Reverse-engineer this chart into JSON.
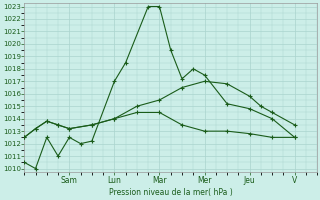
{
  "background_color": "#cceee8",
  "grid_color": "#aad4ce",
  "line_color": "#1a5c1a",
  "ylabel": "Pression niveau de la mer( hPa )",
  "ylim": [
    1010,
    1023
  ],
  "yticks": [
    1010,
    1011,
    1012,
    1013,
    1014,
    1015,
    1016,
    1017,
    1018,
    1019,
    1020,
    1021,
    1022,
    1023
  ],
  "day_labels": [
    "Sam",
    "Lun",
    "Mar",
    "Mer",
    "Jeu",
    "V"
  ],
  "day_positions": [
    2,
    4,
    6,
    8,
    10,
    12
  ],
  "xlim": [
    0,
    13
  ],
  "series": [
    {
      "x": [
        0,
        0.5,
        1.0,
        1.5,
        2.0,
        2.5,
        3.0,
        4.0,
        4.5,
        5.5,
        6.0,
        6.5,
        7.0,
        7.5,
        8.0,
        9.0,
        10.0,
        11.0,
        12.0
      ],
      "y": [
        1010.5,
        1010.0,
        1012.5,
        1011.0,
        1012.5,
        1012.0,
        1012.2,
        1017.0,
        1018.5,
        1023.0,
        1023.0,
        1019.5,
        1017.2,
        1018.0,
        1017.5,
        1015.2,
        1014.8,
        1014.0,
        1012.5
      ]
    },
    {
      "x": [
        0,
        0.5,
        1.0,
        1.5,
        2.0,
        3.0,
        4.0,
        5.0,
        6.0,
        7.0,
        8.0,
        9.0,
        10.0,
        10.5,
        11.0,
        12.0
      ],
      "y": [
        1012.5,
        1013.2,
        1013.8,
        1013.5,
        1013.2,
        1013.5,
        1014.0,
        1015.0,
        1015.5,
        1016.5,
        1017.0,
        1016.8,
        1015.8,
        1015.0,
        1014.5,
        1013.5
      ]
    },
    {
      "x": [
        0,
        0.5,
        1.0,
        1.5,
        2.0,
        3.0,
        4.0,
        5.0,
        6.0,
        7.0,
        8.0,
        9.0,
        10.0,
        11.0,
        12.0
      ],
      "y": [
        1012.5,
        1013.2,
        1013.8,
        1013.5,
        1013.2,
        1013.5,
        1014.0,
        1014.5,
        1014.5,
        1013.5,
        1013.0,
        1013.0,
        1012.8,
        1012.5,
        1012.5
      ]
    }
  ]
}
